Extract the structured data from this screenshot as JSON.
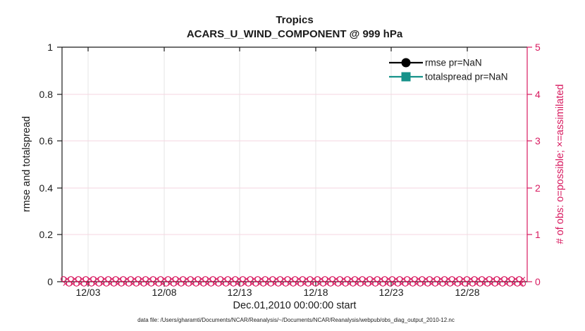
{
  "window": {
    "background": "#ffffff"
  },
  "colors": {
    "ink": "#1a1a1a",
    "obs": "#d81b60",
    "rmse": "#000000",
    "totalspread": "#16928a",
    "grid_vertical": "#e6e6e6",
    "grid_horizontal_pink": "#f6d5e0"
  },
  "chart_data": {
    "type": "line",
    "title": "Tropics",
    "subtitle": "ACARS_U_WIND_COMPONENT @ 999 hPa",
    "xlabel": "Dec.01,2010 00:00:00 start",
    "ylabel_left": "rmse and totalspread",
    "ylabel_right": "# of obs: o=possible; ×=assimilated",
    "x_ticks": [
      "12/03",
      "12/08",
      "12/13",
      "12/18",
      "12/23",
      "12/28"
    ],
    "y_ticks_left": [
      "1",
      "0.8",
      "0.6",
      "0.4",
      "0.2",
      "0"
    ],
    "y_ticks_right": [
      "5",
      "4",
      "3",
      "2",
      "1",
      "0"
    ],
    "ylim_left": [
      0,
      1
    ],
    "ylim_right": [
      0,
      5
    ],
    "grid": "on",
    "legend_position": "northeast",
    "series": [
      {
        "name": "rmse pr=NaN",
        "marker": "filled-circle",
        "color": "#000000",
        "values": "NaN (no line plotted)"
      },
      {
        "name": "totalspread pr=NaN",
        "marker": "filled-square",
        "color": "#16928a",
        "values": "NaN (no line plotted)"
      },
      {
        "name": "# of obs possible (o markers)",
        "marker": "o",
        "color": "#d81b60",
        "constant_value": 0,
        "n_points": 124
      },
      {
        "name": "# of obs assimilated (× markers)",
        "marker": "x",
        "color": "#d81b60",
        "constant_value": 0,
        "n_points": 124
      }
    ],
    "legend": {
      "items": [
        {
          "label": "rmse pr=NaN"
        },
        {
          "label": "totalspread pr=NaN"
        }
      ]
    }
  },
  "obs_markers": {
    "n_points": 124,
    "value": 0
  },
  "footer": {
    "datafile": "data file: /Users/gharamti/Documents/NCAR/Reanalysis/~/Documents/NCAR/Reanalysis/webpub/obs_diag_output_2010-12.nc"
  }
}
